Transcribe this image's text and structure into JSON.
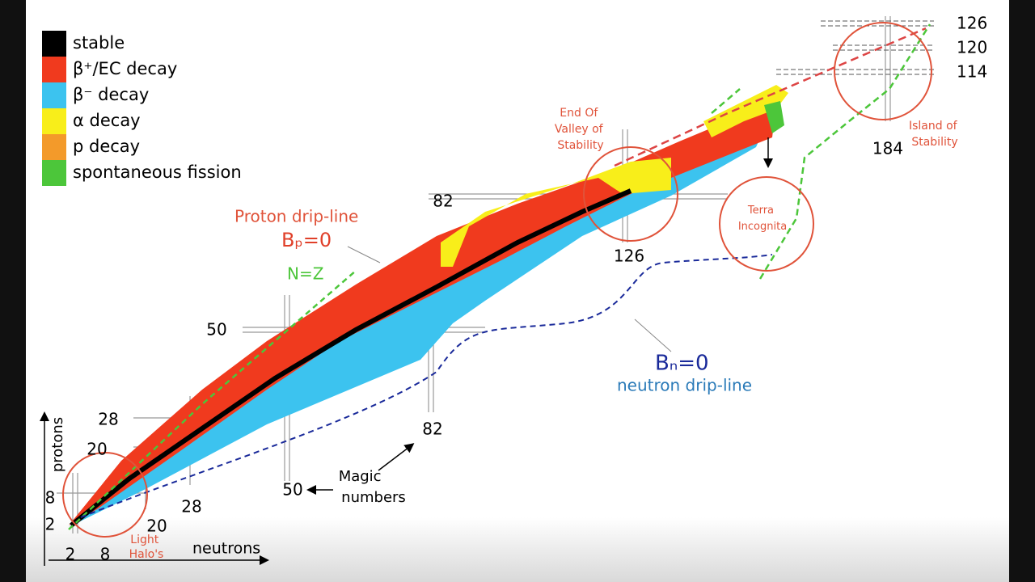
{
  "legend": [
    {
      "label": "stable",
      "color": "#000000"
    },
    {
      "label": "β⁺/EC decay",
      "color": "#f03a1e"
    },
    {
      "label": "β⁻ decay",
      "color": "#3cc3ef"
    },
    {
      "label": "α decay",
      "color": "#f8ee1a"
    },
    {
      "label": "p decay",
      "color": "#f39a2a"
    },
    {
      "label": "spontaneous fission",
      "color": "#4cc63a"
    }
  ],
  "annotations": {
    "proton_drip_line": "Proton drip-line",
    "bp": "Bₚ=0",
    "nz": "N=Z",
    "bn": "Bₙ=0",
    "neutron_drip_line": "neutron drip-line",
    "end_of_valley": [
      "End Of",
      "Valley of",
      "Stability"
    ],
    "terra_incognita": [
      "Terra",
      "Incognita"
    ],
    "island": [
      "Island of",
      "Stability"
    ],
    "light_halos": [
      "Light",
      "Halo's"
    ],
    "magic_numbers": [
      "Magic",
      "numbers"
    ]
  },
  "axes": {
    "protons": "protons",
    "neutrons": "neutrons"
  },
  "proton_magic": [
    2,
    8,
    20,
    28,
    50,
    82
  ],
  "neutron_magic": [
    2,
    8,
    20,
    28,
    50,
    82,
    126,
    184
  ],
  "superheavy_magic": [
    126,
    120,
    114
  ]
}
